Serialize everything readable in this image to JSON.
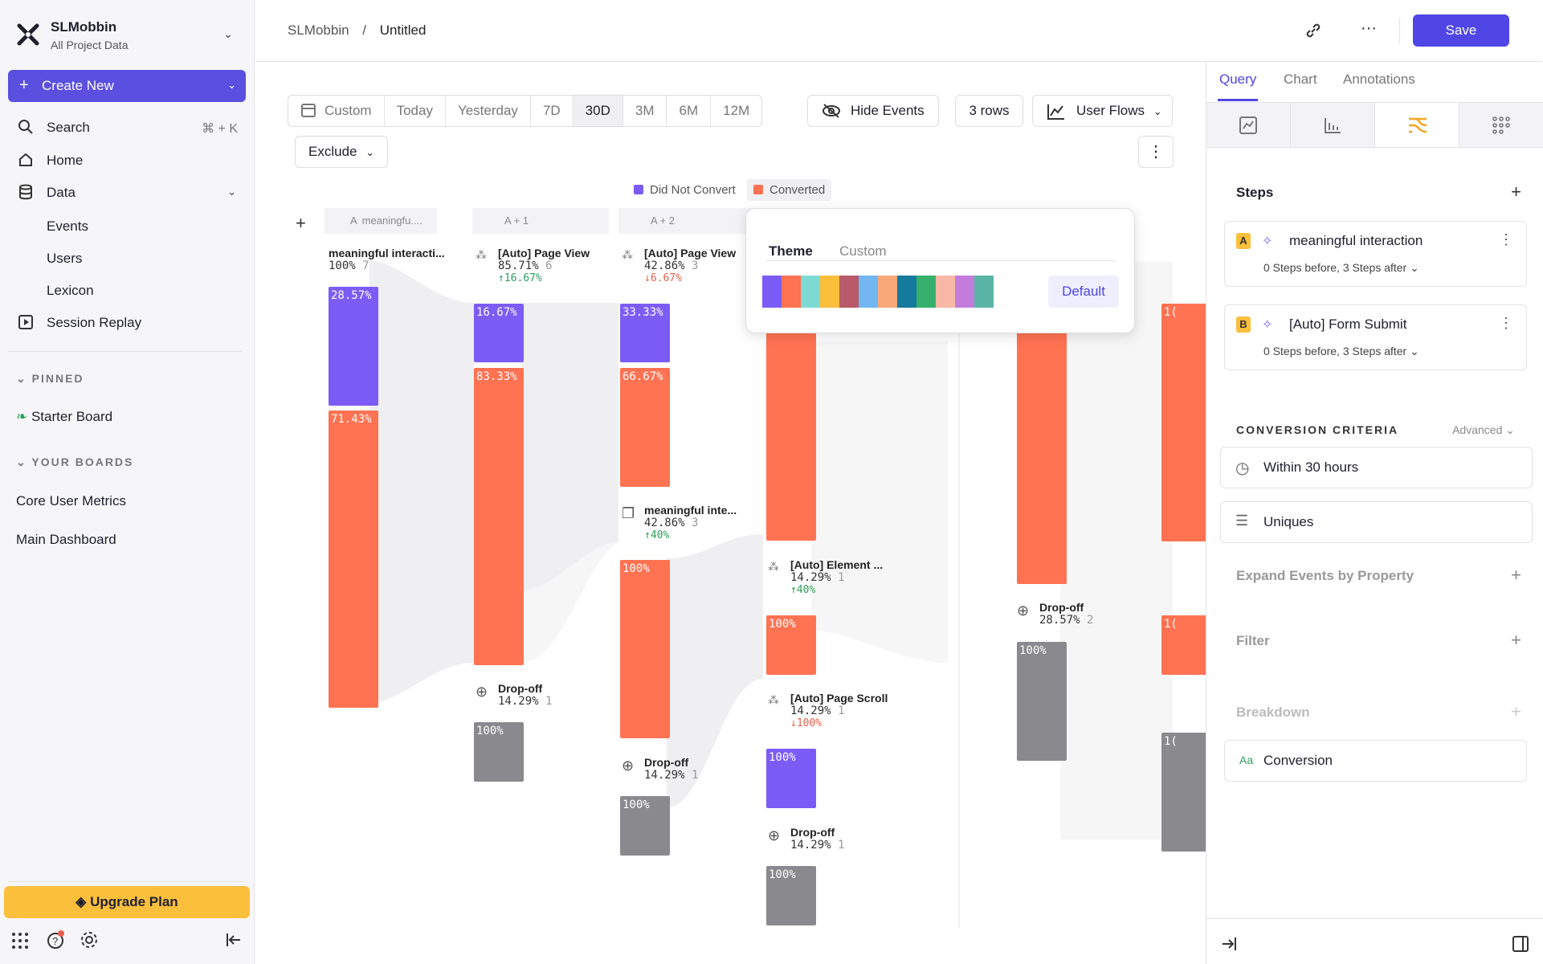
{
  "project": {
    "name": "SLMobbin",
    "subtitle": "All Project Data"
  },
  "sidebar": {
    "create_label": "Create New",
    "search_label": "Search",
    "search_shortcut": "⌘ + K",
    "home_label": "Home",
    "data_label": "Data",
    "data_items": [
      "Events",
      "Users",
      "Lexicon"
    ],
    "session_label": "Session Replay",
    "pinned_label": "PINNED",
    "pinned_items": [
      "Starter Board"
    ],
    "boards_label": "YOUR BOARDS",
    "boards": [
      "Core User Metrics",
      "Main Dashboard"
    ],
    "upgrade_label": "Upgrade Plan"
  },
  "breadcrumb": {
    "root": "SLMobbin",
    "sep": "/",
    "current": "Untitled"
  },
  "header": {
    "save_label": "Save"
  },
  "toolbar": {
    "date_ranges": [
      "Custom",
      "Today",
      "Yesterday",
      "7D",
      "30D",
      "3M",
      "6M",
      "12M"
    ],
    "active_range": "30D",
    "hide_events_label": "Hide Events",
    "rows_label": "3 rows",
    "chart_type_label": "User Flows",
    "exclude_label": "Exclude"
  },
  "legend": [
    {
      "label": "Did Not Convert",
      "color": "#7c5cf6"
    },
    {
      "label": "Converted",
      "color": "#ff7252"
    }
  ],
  "columns": [
    {
      "header": "meaningfu....",
      "prefix": "A"
    },
    {
      "header": "A + 1"
    },
    {
      "header": "A + 2"
    }
  ],
  "flow": {
    "c0": {
      "name": "meaningful interacti...",
      "pct": "100%",
      "count": "7",
      "bar1": "28.57%",
      "bar2": "71.43%"
    },
    "c1": {
      "name": "[Auto] Page View",
      "pct": "85.71%",
      "count": "6",
      "delta": "↑16.67%",
      "bar1": "16.67%",
      "bar2": "83.33%",
      "drop_name": "Drop-off",
      "drop_pct": "14.29%",
      "drop_count": "1",
      "drop_bar": "100%"
    },
    "c2": {
      "name": "[Auto] Page View",
      "pct": "42.86%",
      "count": "3",
      "delta": "↓6.67%",
      "bar1": "33.33%",
      "bar2": "66.67%",
      "e2_name": "meaningful inte...",
      "e2_pct": "42.86%",
      "e2_count": "3",
      "e2_delta": "↑40%",
      "e2_bar": "100%",
      "drop_name": "Drop-off",
      "drop_pct": "14.29%",
      "drop_count": "1",
      "drop_bar": "100%"
    },
    "c3": {
      "e1_name": "[Auto] Element ...",
      "e1_pct": "14.29%",
      "e1_count": "1",
      "e1_delta": "↑40%",
      "e1_bar": "100%",
      "e2_name": "[Auto] Page Scroll",
      "e2_pct": "14.29%",
      "e2_count": "1",
      "e2_delta": "↓100%",
      "e2_bar": "100%",
      "drop_name": "Drop-off",
      "drop_pct": "14.29%",
      "drop_count": "1",
      "drop_bar": "100%"
    },
    "c4": {
      "drop_name": "Drop-off",
      "drop_pct": "28.57%",
      "drop_count": "2",
      "drop_bar": "100%"
    },
    "c5": {
      "bar1": "1(",
      "bar2": "1(",
      "bar3": "1("
    }
  },
  "popover": {
    "tabs": [
      "Theme",
      "Custom"
    ],
    "swatches": [
      "#7c5cf6",
      "#ff7252",
      "#7ddad3",
      "#fbbf3c",
      "#b85a6a",
      "#72b6f2",
      "#f9a87a",
      "#167a9c",
      "#36b06c",
      "#f9b8a6",
      "#c47cdc",
      "#5bb5a6"
    ],
    "default_label": "Default"
  },
  "panel": {
    "tabs": [
      "Query",
      "Chart",
      "Annotations"
    ],
    "steps_label": "Steps",
    "steps": [
      {
        "letter": "A",
        "name": "meaningful interaction",
        "detail": "0 Steps before, 3 Steps after",
        "badge_color": "#fbbf3c"
      },
      {
        "letter": "B",
        "name": "[Auto] Form Submit",
        "detail": "0 Steps before, 3 Steps after",
        "badge_color": "#fbbf3c"
      }
    ],
    "criteria_label": "CONVERSION CRITERIA",
    "advanced_label": "Advanced",
    "within_label": "Within 30 hours",
    "uniques_label": "Uniques",
    "expand_label": "Expand Events by Property",
    "filter_label": "Filter",
    "breakdown_label": "Breakdown",
    "breakdown_type": "Aa",
    "breakdown_value": "Conversion"
  }
}
